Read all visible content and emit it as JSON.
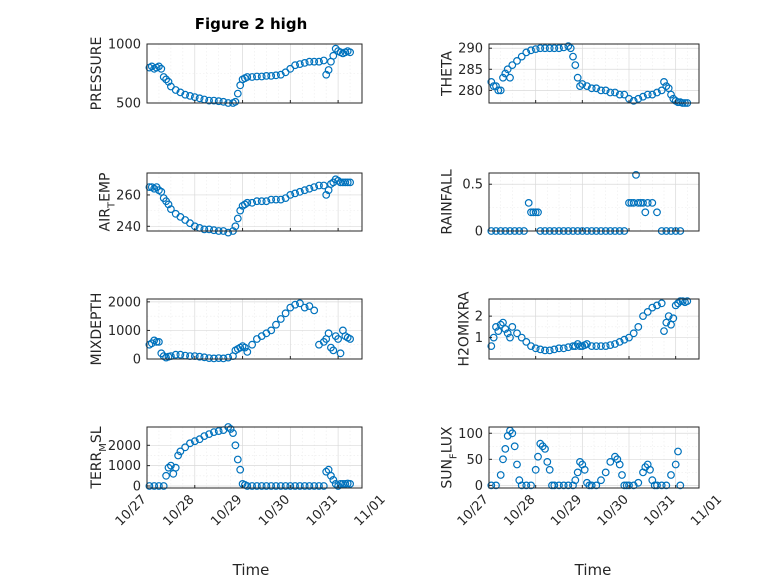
{
  "figure": {
    "title": "Figure 2 high",
    "xlabel": "Time"
  },
  "colors": {
    "marker": "#0072bd",
    "axis": "#262626",
    "grid": "#d9d9d9"
  },
  "x_ticks": [
    "10/27",
    "10/28",
    "10/29",
    "10/30",
    "10/31",
    "11/01"
  ],
  "chart_data": [
    {
      "type": "scatter",
      "ylabel": "PRESSURE",
      "ylim": [
        500,
        1000
      ],
      "yticks": [
        "500",
        "1000"
      ],
      "xlim": [
        0,
        4.5
      ],
      "grid": true,
      "x_tick_labels": false,
      "x": [
        0.05,
        0.1,
        0.15,
        0.2,
        0.25,
        0.3,
        0.35,
        0.4,
        0.45,
        0.5,
        0.6,
        0.7,
        0.8,
        0.9,
        1.0,
        1.1,
        1.2,
        1.3,
        1.4,
        1.5,
        1.6,
        1.7,
        1.8,
        1.85,
        1.9,
        1.95,
        2.0,
        2.05,
        2.1,
        2.2,
        2.3,
        2.4,
        2.5,
        2.6,
        2.7,
        2.8,
        2.9,
        3.0,
        3.1,
        3.2,
        3.3,
        3.4,
        3.5,
        3.6,
        3.7,
        3.75,
        3.8,
        3.85,
        3.9,
        3.95,
        4.0,
        4.05,
        4.1,
        4.15,
        4.2,
        4.25
      ],
      "y": [
        800,
        810,
        790,
        800,
        810,
        790,
        720,
        700,
        680,
        640,
        610,
        590,
        570,
        560,
        550,
        540,
        530,
        520,
        520,
        515,
        510,
        500,
        500,
        510,
        580,
        650,
        700,
        710,
        720,
        720,
        725,
        725,
        730,
        730,
        735,
        740,
        760,
        790,
        820,
        830,
        840,
        850,
        850,
        850,
        860,
        740,
        780,
        850,
        900,
        960,
        940,
        930,
        920,
        930,
        940,
        930
      ]
    },
    {
      "type": "scatter",
      "ylabel": "THETA",
      "ylim": [
        277,
        291
      ],
      "yticks": [
        "280",
        "285",
        "290"
      ],
      "xlim": [
        0,
        4.5
      ],
      "grid": true,
      "x_tick_labels": false,
      "x": [
        0.05,
        0.1,
        0.15,
        0.2,
        0.25,
        0.3,
        0.35,
        0.4,
        0.45,
        0.5,
        0.6,
        0.7,
        0.8,
        0.9,
        1.0,
        1.1,
        1.2,
        1.3,
        1.4,
        1.5,
        1.6,
        1.7,
        1.75,
        1.8,
        1.85,
        1.9,
        1.95,
        2.0,
        2.1,
        2.2,
        2.3,
        2.4,
        2.5,
        2.6,
        2.7,
        2.8,
        2.9,
        3.0,
        3.1,
        3.2,
        3.3,
        3.4,
        3.5,
        3.6,
        3.7,
        3.75,
        3.8,
        3.85,
        3.9,
        3.95,
        4.0,
        4.05,
        4.1,
        4.15,
        4.2,
        4.25
      ],
      "y": [
        282,
        281,
        281,
        280,
        280,
        283,
        284,
        285,
        283,
        286,
        287,
        288,
        289,
        289.5,
        289.8,
        290,
        290,
        290,
        290,
        290,
        290.2,
        290.5,
        290,
        288,
        286,
        283,
        281,
        281.5,
        281,
        280.5,
        280.5,
        280,
        280,
        279.5,
        279.5,
        279,
        279,
        278,
        277.5,
        278,
        278.5,
        279,
        279,
        279.5,
        280,
        282,
        281,
        280.5,
        279,
        278,
        277.5,
        277.2,
        277.2,
        277,
        277,
        277
      ]
    },
    {
      "type": "scatter",
      "ylabel": "AIR_TEMP",
      "ylim": [
        237,
        274
      ],
      "yticks": [
        "240",
        "260"
      ],
      "xlim": [
        0,
        4.5
      ],
      "grid": true,
      "x_tick_labels": false,
      "x": [
        0.05,
        0.1,
        0.15,
        0.2,
        0.25,
        0.3,
        0.35,
        0.4,
        0.45,
        0.5,
        0.6,
        0.7,
        0.8,
        0.9,
        1.0,
        1.1,
        1.2,
        1.3,
        1.4,
        1.5,
        1.6,
        1.7,
        1.8,
        1.85,
        1.9,
        1.95,
        2.0,
        2.05,
        2.1,
        2.2,
        2.3,
        2.4,
        2.5,
        2.6,
        2.7,
        2.8,
        2.9,
        3.0,
        3.1,
        3.2,
        3.3,
        3.4,
        3.5,
        3.6,
        3.7,
        3.75,
        3.8,
        3.85,
        3.9,
        3.95,
        4.0,
        4.05,
        4.1,
        4.15,
        4.2,
        4.25
      ],
      "y": [
        265,
        265,
        264,
        265,
        263,
        262,
        258,
        256,
        254,
        251,
        248,
        246,
        244,
        242,
        240,
        239,
        238,
        238,
        237.5,
        237,
        237,
        236,
        237,
        240,
        245,
        250,
        253,
        254,
        255,
        255,
        256,
        256,
        256,
        257,
        257,
        257,
        258,
        260,
        261,
        262,
        263,
        264,
        265,
        266,
        266,
        260,
        263,
        267,
        268,
        270,
        269,
        268,
        268,
        268,
        268,
        268
      ]
    },
    {
      "type": "scatter",
      "ylabel": "RAINFALL",
      "ylim": [
        0,
        0.62
      ],
      "yticks": [
        "0",
        "0.5"
      ],
      "xlim": [
        0,
        4.5
      ],
      "grid": true,
      "x_tick_labels": false,
      "x": [
        0.05,
        0.15,
        0.25,
        0.35,
        0.45,
        0.55,
        0.65,
        0.75,
        0.85,
        0.9,
        0.95,
        1.0,
        1.05,
        1.1,
        1.2,
        1.3,
        1.4,
        1.5,
        1.6,
        1.7,
        1.8,
        1.9,
        2.0,
        2.1,
        2.2,
        2.3,
        2.4,
        2.5,
        2.6,
        2.7,
        2.8,
        2.9,
        3.0,
        3.05,
        3.1,
        3.15,
        3.2,
        3.25,
        3.3,
        3.35,
        3.4,
        3.5,
        3.6,
        3.7,
        3.8,
        3.9,
        4.0,
        4.1
      ],
      "y": [
        0,
        0,
        0,
        0,
        0,
        0,
        0,
        0,
        0.3,
        0.2,
        0.2,
        0.2,
        0.2,
        0,
        0,
        0,
        0,
        0,
        0,
        0,
        0,
        0,
        0,
        0,
        0,
        0,
        0,
        0,
        0,
        0,
        0,
        0,
        0.3,
        0.3,
        0.3,
        0.6,
        0.3,
        0.3,
        0.3,
        0.2,
        0.3,
        0.3,
        0.2,
        0,
        0,
        0,
        0,
        0
      ]
    },
    {
      "type": "scatter",
      "ylabel": "MIXDEPTH",
      "ylim": [
        0,
        2100
      ],
      "yticks": [
        "0",
        "1000",
        "2000"
      ],
      "xlim": [
        0,
        4.5
      ],
      "grid": true,
      "x_tick_labels": false,
      "x": [
        0.05,
        0.1,
        0.15,
        0.2,
        0.25,
        0.3,
        0.35,
        0.4,
        0.45,
        0.5,
        0.6,
        0.7,
        0.8,
        0.9,
        1.0,
        1.1,
        1.2,
        1.3,
        1.4,
        1.5,
        1.6,
        1.7,
        1.8,
        1.85,
        1.9,
        1.95,
        2.0,
        2.05,
        2.1,
        2.2,
        2.3,
        2.4,
        2.5,
        2.6,
        2.7,
        2.8,
        2.9,
        3.0,
        3.1,
        3.2,
        3.3,
        3.4,
        3.5,
        3.6,
        3.7,
        3.75,
        3.8,
        3.85,
        3.9,
        3.95,
        4.0,
        4.05,
        4.1,
        4.15,
        4.2,
        4.25
      ],
      "y": [
        500,
        550,
        650,
        600,
        600,
        200,
        100,
        50,
        80,
        100,
        150,
        150,
        120,
        100,
        100,
        80,
        60,
        30,
        20,
        30,
        20,
        50,
        100,
        300,
        350,
        400,
        450,
        400,
        250,
        500,
        700,
        800,
        900,
        1000,
        1200,
        1400,
        1600,
        1800,
        1900,
        1950,
        1800,
        1850,
        1700,
        500,
        600,
        700,
        900,
        400,
        300,
        800,
        700,
        200,
        1000,
        800,
        750,
        700
      ]
    },
    {
      "type": "scatter",
      "ylabel": "H2OMIXRA",
      "ylim": [
        0,
        2.8
      ],
      "yticks": [
        "1",
        "2"
      ],
      "xlim": [
        0,
        4.5
      ],
      "grid": true,
      "x_tick_labels": false,
      "x": [
        0.05,
        0.1,
        0.15,
        0.2,
        0.25,
        0.3,
        0.35,
        0.4,
        0.45,
        0.5,
        0.6,
        0.7,
        0.8,
        0.9,
        1.0,
        1.1,
        1.2,
        1.3,
        1.4,
        1.5,
        1.6,
        1.7,
        1.8,
        1.85,
        1.9,
        1.95,
        2.0,
        2.05,
        2.1,
        2.2,
        2.3,
        2.4,
        2.5,
        2.6,
        2.7,
        2.8,
        2.9,
        3.0,
        3.1,
        3.2,
        3.3,
        3.4,
        3.5,
        3.6,
        3.7,
        3.75,
        3.8,
        3.85,
        3.9,
        3.95,
        4.0,
        4.05,
        4.1,
        4.15,
        4.2,
        4.25
      ],
      "y": [
        0.6,
        1.0,
        1.5,
        1.3,
        1.6,
        1.7,
        1.4,
        1.2,
        1.0,
        1.5,
        1.2,
        1.0,
        0.8,
        0.6,
        0.5,
        0.45,
        0.4,
        0.4,
        0.45,
        0.5,
        0.5,
        0.55,
        0.6,
        0.6,
        0.7,
        0.6,
        0.6,
        0.65,
        0.7,
        0.6,
        0.6,
        0.6,
        0.6,
        0.65,
        0.7,
        0.8,
        0.9,
        1.0,
        1.2,
        1.5,
        2.0,
        2.2,
        2.4,
        2.5,
        2.6,
        1.3,
        1.7,
        2.0,
        1.6,
        1.9,
        2.5,
        2.6,
        2.7,
        2.7,
        2.65,
        2.7
      ]
    },
    {
      "type": "scatter",
      "ylabel": "TERR_MSL",
      "ylim": [
        -100,
        2900
      ],
      "yticks": [
        "0",
        "1000",
        "2000"
      ],
      "xlim": [
        0,
        4.5
      ],
      "grid": true,
      "x_tick_labels": true,
      "x": [
        0.05,
        0.15,
        0.25,
        0.35,
        0.4,
        0.45,
        0.5,
        0.55,
        0.6,
        0.65,
        0.7,
        0.8,
        0.9,
        1.0,
        1.1,
        1.2,
        1.3,
        1.4,
        1.5,
        1.6,
        1.7,
        1.75,
        1.8,
        1.85,
        1.9,
        1.95,
        2.0,
        2.05,
        2.1,
        2.2,
        2.3,
        2.4,
        2.5,
        2.6,
        2.7,
        2.8,
        2.9,
        3.0,
        3.1,
        3.2,
        3.3,
        3.4,
        3.5,
        3.6,
        3.7,
        3.75,
        3.8,
        3.85,
        3.9,
        3.95,
        4.0,
        4.05,
        4.1,
        4.15,
        4.2,
        4.25
      ],
      "y": [
        0,
        0,
        0,
        0,
        500,
        900,
        1000,
        600,
        900,
        1500,
        1700,
        1900,
        2100,
        2200,
        2300,
        2450,
        2550,
        2650,
        2700,
        2750,
        2900,
        2800,
        2600,
        2000,
        1300,
        800,
        100,
        50,
        0,
        0,
        0,
        0,
        0,
        0,
        0,
        0,
        0,
        0,
        0,
        0,
        0,
        0,
        0,
        0,
        0,
        700,
        800,
        500,
        300,
        100,
        0,
        100,
        100,
        100,
        120,
        100
      ]
    },
    {
      "type": "scatter",
      "ylabel": "SUN_FLUX",
      "ylim": [
        -5,
        112
      ],
      "yticks": [
        "0",
        "50",
        "100"
      ],
      "xlim": [
        0,
        4.5
      ],
      "grid": true,
      "x_tick_labels": true,
      "x": [
        0.05,
        0.15,
        0.25,
        0.3,
        0.35,
        0.4,
        0.45,
        0.5,
        0.55,
        0.6,
        0.65,
        0.7,
        0.8,
        0.9,
        1.0,
        1.05,
        1.1,
        1.15,
        1.2,
        1.25,
        1.3,
        1.35,
        1.4,
        1.5,
        1.6,
        1.7,
        1.8,
        1.85,
        1.9,
        1.95,
        2.0,
        2.05,
        2.1,
        2.15,
        2.2,
        2.3,
        2.4,
        2.5,
        2.6,
        2.7,
        2.75,
        2.8,
        2.85,
        2.9,
        2.95,
        3.0,
        3.1,
        3.2,
        3.3,
        3.35,
        3.4,
        3.45,
        3.5,
        3.55,
        3.6,
        3.7,
        3.8,
        3.9,
        4.0,
        4.05,
        4.1
      ],
      "y": [
        0,
        0,
        20,
        50,
        70,
        95,
        105,
        100,
        75,
        40,
        10,
        0,
        0,
        0,
        30,
        55,
        80,
        75,
        70,
        45,
        30,
        0,
        0,
        0,
        0,
        0,
        0,
        10,
        25,
        45,
        40,
        30,
        5,
        0,
        0,
        0,
        10,
        25,
        45,
        55,
        50,
        40,
        20,
        0,
        0,
        0,
        0,
        5,
        25,
        35,
        40,
        30,
        10,
        0,
        0,
        0,
        0,
        20,
        40,
        65,
        0
      ]
    }
  ]
}
